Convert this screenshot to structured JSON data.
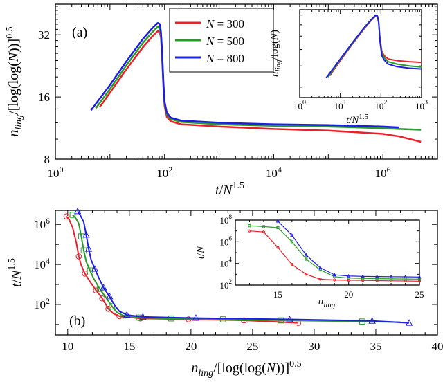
{
  "chart_data": [
    {
      "type": "line",
      "panel": "(a)",
      "title": "",
      "xlabel": "t/N^1.5",
      "ylabel": "n_ling/[log(log(N))]^0.5",
      "xscale": "log",
      "yscale": "log",
      "xlim": [
        1,
        10000000
      ],
      "ylim": [
        8,
        45
      ],
      "xticks": [
        {
          "v": 1,
          "label": "10",
          "exp": "0"
        },
        {
          "v": 100,
          "label": "10",
          "exp": "2"
        },
        {
          "v": 10000,
          "label": "10",
          "exp": "4"
        },
        {
          "v": 1000000,
          "label": "10",
          "exp": "6"
        }
      ],
      "yticks": [
        {
          "v": 8,
          "label": "8"
        },
        {
          "v": 16,
          "label": "16"
        },
        {
          "v": 32,
          "label": "32"
        }
      ],
      "legend": {
        "position": "top-center",
        "prefix": "N",
        "eq": " = "
      },
      "series": [
        {
          "name": "300",
          "color": "#e8202a",
          "x": [
            6.5,
            10,
            20,
            40,
            60,
            75,
            82,
            86,
            90,
            95,
            100,
            110,
            130,
            200,
            1000,
            10000,
            100000,
            1000000,
            2000000,
            5000000
          ],
          "y": [
            14.3,
            16.8,
            21.8,
            27.8,
            31.5,
            33.3,
            33.0,
            31.0,
            25.0,
            18.0,
            14.5,
            12.8,
            12.2,
            11.8,
            11.5,
            11.2,
            11.0,
            10.6,
            10.3,
            9.7
          ]
        },
        {
          "name": "500",
          "color": "#2a9a2a",
          "x": [
            5.5,
            10,
            20,
            40,
            60,
            75,
            82,
            86,
            90,
            95,
            100,
            110,
            130,
            200,
            1000,
            10000,
            100000,
            1000000,
            2000000,
            5000000
          ],
          "y": [
            14.1,
            17.5,
            22.8,
            29.2,
            33.0,
            35.0,
            34.5,
            32.0,
            26.0,
            18.5,
            15.0,
            13.2,
            12.5,
            12.1,
            11.8,
            11.6,
            11.5,
            11.3,
            11.2,
            11.1
          ]
        },
        {
          "name": "800",
          "color": "#1d1de6",
          "x": [
            4.5,
            10,
            20,
            40,
            60,
            75,
            82,
            86,
            90,
            95,
            100,
            110,
            130,
            200,
            1000,
            10000,
            100000,
            1000000,
            2000000
          ],
          "y": [
            13.8,
            18.3,
            23.8,
            30.5,
            34.5,
            36.5,
            36.0,
            33.0,
            27.0,
            19.0,
            15.2,
            13.4,
            12.7,
            12.3,
            12.0,
            11.8,
            11.7,
            11.5,
            11.4
          ]
        }
      ],
      "inset": {
        "xlabel": "t/N^1.5",
        "ylabel": "n_ling/log(N)",
        "xscale": "log",
        "yscale": "log",
        "xlim": [
          1,
          1000
        ],
        "ylim": [
          1.3,
          4.3
        ],
        "xticks": [
          {
            "v": 1,
            "label": "10",
            "exp": "0"
          },
          {
            "v": 10,
            "label": "10",
            "exp": "1"
          },
          {
            "v": 100,
            "label": "10",
            "exp": "2"
          },
          {
            "v": 1000,
            "label": "10",
            "exp": "3"
          }
        ],
        "series": [
          {
            "name": "300",
            "x": [
              5.5,
              10,
              20,
              40,
              60,
              75,
              82,
              88,
              95,
              105,
              120,
              150,
              250,
              500,
              1000
            ],
            "y": [
              1.75,
              2.15,
              2.7,
              3.35,
              3.75,
              3.95,
              3.9,
              3.6,
              2.9,
              2.45,
              2.3,
              2.2,
              2.15,
              2.12,
              2.1
            ]
          },
          {
            "name": "500",
            "x": [
              5,
              10,
              20,
              40,
              60,
              75,
              82,
              88,
              95,
              105,
              120,
              150,
              250,
              500,
              1000
            ],
            "y": [
              1.72,
              2.18,
              2.72,
              3.38,
              3.78,
              3.97,
              3.92,
              3.62,
              2.85,
              2.38,
              2.24,
              2.12,
              2.05,
              2.0,
              1.97
            ]
          },
          {
            "name": "800",
            "x": [
              4.5,
              10,
              20,
              40,
              60,
              75,
              82,
              88,
              95,
              105,
              120,
              150,
              250,
              500,
              1000
            ],
            "y": [
              1.7,
              2.2,
              2.75,
              3.4,
              3.8,
              4.0,
              3.95,
              3.65,
              2.8,
              2.3,
              2.17,
              2.05,
              1.98,
              1.94,
              1.92
            ]
          }
        ]
      }
    },
    {
      "type": "line",
      "panel": "(b)",
      "title": "",
      "xlabel": "n_ling/[log(log(N))]^0.5",
      "ylabel": "t/N^1.5",
      "xscale": "linear",
      "yscale": "log",
      "xlim": [
        9,
        40
      ],
      "ylim": [
        3,
        5000000
      ],
      "xticks": [
        {
          "v": 10,
          "label": "10"
        },
        {
          "v": 15,
          "label": "15"
        },
        {
          "v": 20,
          "label": "20"
        },
        {
          "v": 25,
          "label": "25"
        },
        {
          "v": 30,
          "label": "30"
        },
        {
          "v": 35,
          "label": "35"
        },
        {
          "v": 40,
          "label": "40"
        }
      ],
      "yticks": [
        {
          "v": 100,
          "label": "10",
          "exp": "2"
        },
        {
          "v": 10000,
          "label": "10",
          "exp": "4"
        },
        {
          "v": 1000000,
          "label": "10",
          "exp": "6"
        }
      ],
      "series": [
        {
          "name": "300",
          "color": "#e8202a",
          "marker": "circle",
          "x": [
            9.9,
            10.1,
            10.4,
            10.7,
            10.9,
            11.1,
            11.4,
            11.8,
            12.3,
            12.8,
            13.3,
            13.7,
            14.2,
            15.9,
            19.8,
            24.3,
            28.7
          ],
          "y": [
            2500000,
            1800000,
            700000,
            120000,
            25000,
            9000,
            3500,
            1400,
            500,
            200,
            60,
            35,
            26,
            20,
            18,
            16,
            12
          ],
          "markers_x": [
            9.9,
            10.9,
            11.4,
            12.3,
            12.8,
            13.3,
            14.2,
            15.9,
            19.8,
            24.3,
            28.7
          ],
          "markers_y": [
            2500000,
            25000,
            3500,
            500,
            200,
            60,
            26,
            20,
            18,
            16,
            12
          ]
        },
        {
          "name": "500",
          "color": "#2a9a2a",
          "marker": "square",
          "x": [
            10.4,
            10.6,
            10.9,
            11.1,
            11.3,
            11.5,
            11.8,
            12.1,
            12.6,
            13.1,
            13.6,
            14.0,
            14.5,
            15.8,
            18.4,
            22.6,
            27.3,
            33.9,
            37.0
          ],
          "y": [
            3000000,
            2300000,
            1100000,
            250000,
            50000,
            14000,
            5000,
            2000,
            600,
            220,
            80,
            40,
            28,
            22,
            20,
            18,
            16,
            14,
            13
          ],
          "markers_x": [
            10.4,
            11.1,
            11.3,
            11.8,
            12.6,
            13.6,
            14.5,
            15.8,
            18.4,
            22.6,
            27.3,
            33.9
          ],
          "markers_y": [
            3000000,
            250000,
            50000,
            5000,
            600,
            80,
            28,
            22,
            20,
            18,
            16,
            14
          ]
        },
        {
          "name": "800",
          "color": "#1d1de6",
          "marker": "triangle",
          "x": [
            10.8,
            11.0,
            11.3,
            11.5,
            11.7,
            11.9,
            12.2,
            12.5,
            12.9,
            13.4,
            13.8,
            14.2,
            14.8,
            16.1,
            20.4,
            28.0,
            34.7,
            37.7
          ],
          "y": [
            4500000,
            3000000,
            1300000,
            300000,
            60000,
            17000,
            6000,
            2300,
            700,
            250,
            90,
            45,
            30,
            24,
            21,
            18,
            15,
            12
          ],
          "markers_x": [
            10.8,
            11.5,
            11.7,
            12.2,
            12.9,
            13.4,
            14.8,
            16.1,
            20.4,
            28.0,
            34.7,
            37.7
          ],
          "markers_y": [
            4500000,
            300000,
            60000,
            6000,
            700,
            250,
            30,
            24,
            21,
            18,
            15,
            12
          ]
        }
      ],
      "inset": {
        "xlabel": "n_ling",
        "ylabel": "t/N",
        "xscale": "linear",
        "yscale": "log",
        "xlim": [
          12,
          25
        ],
        "ylim": [
          100,
          100000000
        ],
        "xticks": [
          {
            "v": 15,
            "label": "15"
          },
          {
            "v": 20,
            "label": "20"
          },
          {
            "v": 25,
            "label": "25"
          }
        ],
        "yticks": [
          {
            "v": 100,
            "label": "10",
            "exp": "2"
          },
          {
            "v": 10000,
            "label": "10",
            "exp": "4"
          },
          {
            "v": 1000000,
            "label": "10",
            "exp": "6"
          },
          {
            "v": 100000000,
            "label": "10",
            "exp": "8"
          }
        ],
        "series": [
          {
            "name": "300",
            "x": [
              13,
              14,
              15,
              16,
              17,
              18,
              19,
              20,
              21,
              22,
              23,
              24,
              25
            ],
            "y": [
              10000000,
              8000000,
              300000,
              8000,
              1000,
              350,
              300,
              280,
              270,
              260,
              250,
              240,
              230
            ]
          },
          {
            "name": "500",
            "x": [
              13,
              14,
              15,
              16,
              17,
              18,
              19,
              20,
              21,
              22,
              23,
              24,
              25
            ],
            "y": [
              30000000,
              25000000,
              20000000,
              1000000,
              25000,
              2500,
              600,
              450,
              420,
              400,
              380,
              370,
              360
            ]
          },
          {
            "name": "800",
            "x": [
              15,
              16,
              17,
              18,
              19,
              20,
              21,
              22,
              23,
              24,
              25
            ],
            "y": [
              80000000,
              4000000,
              60000,
              4000,
              900,
              700,
              650,
              620,
              600,
              580,
              560
            ]
          }
        ]
      }
    }
  ]
}
